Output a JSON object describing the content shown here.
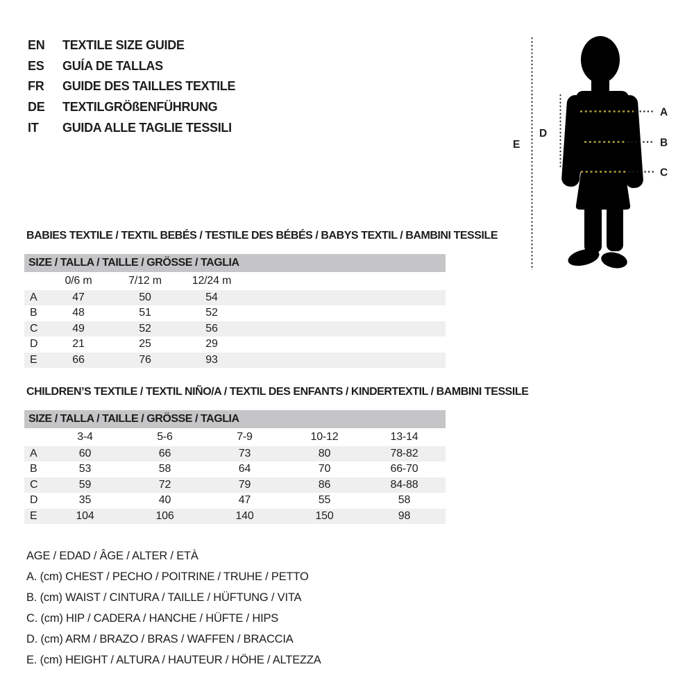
{
  "colors": {
    "text": "#1d1d1d",
    "table_header_bar": "#c5c5c7",
    "table_stripe": "#efeff0",
    "silhouette": "#000000",
    "measure_dots_yellow": "#b7a43c",
    "leader_dots_black": "#1e1e1e"
  },
  "languages": [
    {
      "code": "EN",
      "title": "TEXTILE SIZE GUIDE"
    },
    {
      "code": "ES",
      "title": "GUÍA DE TALLAS"
    },
    {
      "code": "FR",
      "title": "GUIDE DES TAILLES TEXTILE"
    },
    {
      "code": "DE",
      "title": "TEXTILGRÖßENFÜHRUNG"
    },
    {
      "code": "IT",
      "title": "GUIDA ALLE TAGLIE TESSILI"
    }
  ],
  "figure": {
    "labels": [
      "A",
      "B",
      "C",
      "D",
      "E"
    ]
  },
  "babies_table": {
    "title": "BABIES TEXTILE / TEXTIL BEBÉS / TESTILE DES BÉBÉS / BABYS TEXTIL / BAMBINI TESSILE",
    "header": "SIZE / TALLA / TAILLE / GRÖSSE / TAGLIA",
    "columns": [
      "0/6 m",
      "7/12 m",
      "12/24 m"
    ],
    "rows": [
      {
        "label": "A",
        "values": [
          "47",
          "50",
          "54"
        ]
      },
      {
        "label": "B",
        "values": [
          "48",
          "51",
          "52"
        ]
      },
      {
        "label": "C",
        "values": [
          "49",
          "52",
          "56"
        ]
      },
      {
        "label": "D",
        "values": [
          "21",
          "25",
          "29"
        ]
      },
      {
        "label": "E",
        "values": [
          "66",
          "76",
          "93"
        ]
      }
    ]
  },
  "children_table": {
    "title": "CHILDREN’S TEXTILE / TEXTIL NIÑO/A / TEXTIL DES ENFANTS / KINDERTEXTIL / BAMBINI TESSILE",
    "header": "SIZE / TALLA / TAILLE / GRÖSSE / TAGLIA",
    "columns": [
      "3-4",
      "5-6",
      "7-9",
      "10-12",
      "13-14"
    ],
    "rows": [
      {
        "label": "A",
        "values": [
          "60",
          "66",
          "73",
          "80",
          "78-82"
        ]
      },
      {
        "label": "B",
        "values": [
          "53",
          "58",
          "64",
          "70",
          "66-70"
        ]
      },
      {
        "label": "C",
        "values": [
          "59",
          "72",
          "79",
          "86",
          "84-88"
        ]
      },
      {
        "label": "D",
        "values": [
          "35",
          "40",
          "47",
          "55",
          "58"
        ]
      },
      {
        "label": "E",
        "values": [
          "104",
          "106",
          "140",
          "150",
          "98"
        ]
      }
    ]
  },
  "legend": {
    "age": "AGE / EDAD / ÂGE / ALTER / ETÀ",
    "items": [
      "A. (cm) CHEST / PECHO / POITRINE / TRUHE / PETTO",
      "B. (cm) WAIST / CINTURA / TAILLE / HÜFTUNG / VITA",
      "C. (cm) HIP / CADERA / HANCHE / HÜFTE / HIPS",
      "D. (cm) ARM / BRAZO / BRAS / WAFFEN / BRACCIA",
      "E. (cm) HEIGHT / ALTURA / HAUTEUR / HÖHE / ALTEZZA"
    ]
  }
}
